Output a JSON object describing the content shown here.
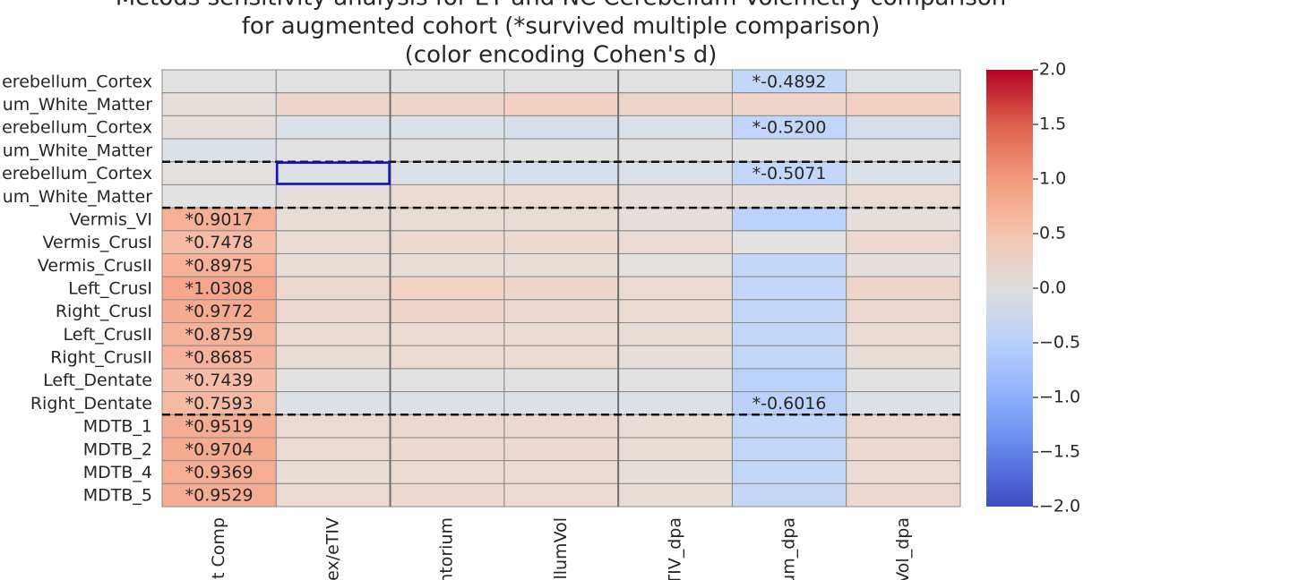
{
  "chart_data": {
    "type": "heatmap",
    "title": [
      "Metods sensitivity analysis for ET and NC Cerebellum Volemetry comparison",
      "for augmented cohort (*survived multiple comparison)",
      "(color encoding Cohen's d)"
    ],
    "rows": [
      "erebellum_Cortex",
      "um_White_Matter",
      "erebellum_Cortex",
      "um_White_Matter",
      "erebellum_Cortex",
      "um_White_Matter",
      "Vermis_VI",
      "Vermis_CrusI",
      "Vermis_CrusII",
      "Left_CrusI",
      "Right_CrusI",
      "Left_CrusII",
      "Right_CrusII",
      "Left_Dentate",
      "Right_Dentate",
      "MDTB_1",
      "MDTB_2",
      "MDTB_4",
      "MDTB_5"
    ],
    "columns": [
      "t Comp",
      "ex/eTIV",
      "ntorium",
      "ellumVol",
      "TIV_dpa",
      "um_dpa",
      "Vol_dpa"
    ],
    "values": [
      [
        0.0,
        0.0,
        0.0,
        0.0,
        0.0,
        -0.4892,
        -0.05
      ],
      [
        0.1,
        0.3,
        0.3,
        0.4,
        0.3,
        0.3,
        0.4
      ],
      [
        0.1,
        -0.1,
        -0.1,
        -0.2,
        -0.1,
        -0.52,
        -0.2
      ],
      [
        -0.1,
        0.0,
        0.0,
        0.0,
        0.0,
        0.0,
        0.0
      ],
      [
        0.05,
        -0.1,
        -0.1,
        -0.2,
        -0.1,
        -0.5071,
        -0.1
      ],
      [
        0.0,
        0.1,
        0.2,
        0.2,
        0.1,
        0.1,
        0.2
      ],
      [
        0.9017,
        0.15,
        0.15,
        0.15,
        0.1,
        -0.6,
        0.1
      ],
      [
        0.7478,
        0.2,
        0.25,
        0.25,
        0.2,
        0.0,
        0.25
      ],
      [
        0.8975,
        0.15,
        0.15,
        0.15,
        0.05,
        -0.5,
        0.1
      ],
      [
        1.0308,
        0.25,
        0.35,
        0.3,
        0.2,
        -0.5,
        0.3
      ],
      [
        0.9772,
        0.25,
        0.3,
        0.25,
        0.2,
        -0.5,
        0.25
      ],
      [
        0.8759,
        0.2,
        0.2,
        0.2,
        0.15,
        -0.5,
        0.2
      ],
      [
        0.8685,
        0.15,
        0.2,
        0.2,
        0.1,
        -0.5,
        0.15
      ],
      [
        0.7439,
        0.0,
        0.0,
        0.0,
        0.0,
        -0.6,
        0.0
      ],
      [
        0.7593,
        -0.1,
        -0.1,
        -0.1,
        -0.1,
        -0.6016,
        -0.1
      ],
      [
        0.9519,
        0.2,
        0.25,
        0.25,
        0.15,
        -0.5,
        0.25
      ],
      [
        0.9704,
        0.2,
        0.25,
        0.25,
        0.15,
        -0.5,
        0.25
      ],
      [
        0.9369,
        0.15,
        0.2,
        0.2,
        0.1,
        -0.5,
        0.2
      ],
      [
        0.9529,
        0.2,
        0.25,
        0.2,
        0.15,
        -0.45,
        0.25
      ]
    ],
    "value_labels": [
      [
        null,
        null,
        null,
        null,
        null,
        "*-0.4892",
        null
      ],
      [
        null,
        null,
        null,
        null,
        null,
        null,
        null
      ],
      [
        null,
        null,
        null,
        null,
        null,
        "*-0.5200",
        null
      ],
      [
        null,
        null,
        null,
        null,
        null,
        null,
        null
      ],
      [
        null,
        null,
        null,
        null,
        null,
        "*-0.5071",
        null
      ],
      [
        null,
        null,
        null,
        null,
        null,
        null,
        null
      ],
      [
        "*0.9017",
        null,
        null,
        null,
        null,
        null,
        null
      ],
      [
        "*0.7478",
        null,
        null,
        null,
        null,
        null,
        null
      ],
      [
        "*0.8975",
        null,
        null,
        null,
        null,
        null,
        null
      ],
      [
        "*1.0308",
        null,
        null,
        null,
        null,
        null,
        null
      ],
      [
        "*0.9772",
        null,
        null,
        null,
        null,
        null,
        null
      ],
      [
        "*0.8759",
        null,
        null,
        null,
        null,
        null,
        null
      ],
      [
        "*0.8685",
        null,
        null,
        null,
        null,
        null,
        null
      ],
      [
        "*0.7439",
        null,
        null,
        null,
        null,
        null,
        null
      ],
      [
        "*0.7593",
        null,
        null,
        null,
        null,
        "*-0.6016",
        null
      ],
      [
        "*0.9519",
        null,
        null,
        null,
        null,
        null,
        null
      ],
      [
        "*0.9704",
        null,
        null,
        null,
        null,
        null,
        null
      ],
      [
        "*0.9369",
        null,
        null,
        null,
        null,
        null,
        null
      ],
      [
        "*0.9529",
        null,
        null,
        null,
        null,
        null,
        null
      ]
    ],
    "colormap": "coolwarm",
    "clim": [
      -2,
      2
    ],
    "cticks": [
      {
        "value": 2,
        "label": "2.0"
      },
      {
        "value": 1.5,
        "label": "1.5"
      },
      {
        "value": 1,
        "label": "1.0"
      },
      {
        "value": 0.5,
        "label": "0.5"
      },
      {
        "value": 0,
        "label": "0.0"
      },
      {
        "value": -0.5,
        "label": "−0.5"
      },
      {
        "value": -1,
        "label": "−1.0"
      },
      {
        "value": -1.5,
        "label": "−1.5"
      },
      {
        "value": -2,
        "label": "−2.0"
      }
    ]
  }
}
